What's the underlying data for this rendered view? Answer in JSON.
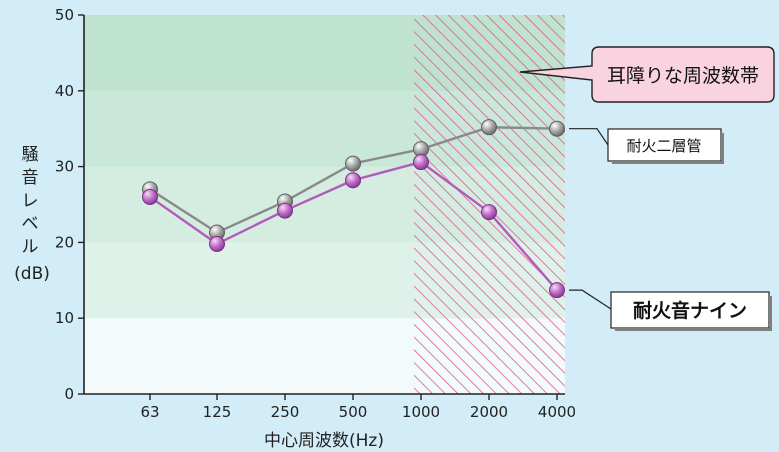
{
  "chart_data": {
    "type": "line",
    "categories": [
      "63",
      "125",
      "250",
      "500",
      "1000",
      "2000",
      "4000"
    ],
    "series": [
      {
        "name": "耐火二層管",
        "values": [
          27,
          21.3,
          25.4,
          30.4,
          32.3,
          35.2,
          35.0
        ],
        "color": "#8a8a8a"
      },
      {
        "name": "耐火音ナイン",
        "values": [
          26,
          19.8,
          24.2,
          28.2,
          30.6,
          24.0,
          13.7
        ],
        "color": "#b05cb8"
      }
    ],
    "ylim": [
      0,
      50
    ],
    "yticks": [
      "0",
      "10",
      "20",
      "30",
      "40",
      "50"
    ],
    "ylabel": "騒音レベル",
    "ylabel_unit": "(dB)",
    "xlabel": "中心周波数(Hz)",
    "highlight_region": {
      "from_category": "1000",
      "to_category": "4000",
      "label": "耳障りな周波数帯"
    },
    "background_bands": [
      "#f2fafa",
      "#dff2ea",
      "#d4ede0",
      "#c9e8d9",
      "#bfe3cf"
    ],
    "hatch_color": "#e0569a",
    "grid": false,
    "legend": "right, callouts"
  }
}
